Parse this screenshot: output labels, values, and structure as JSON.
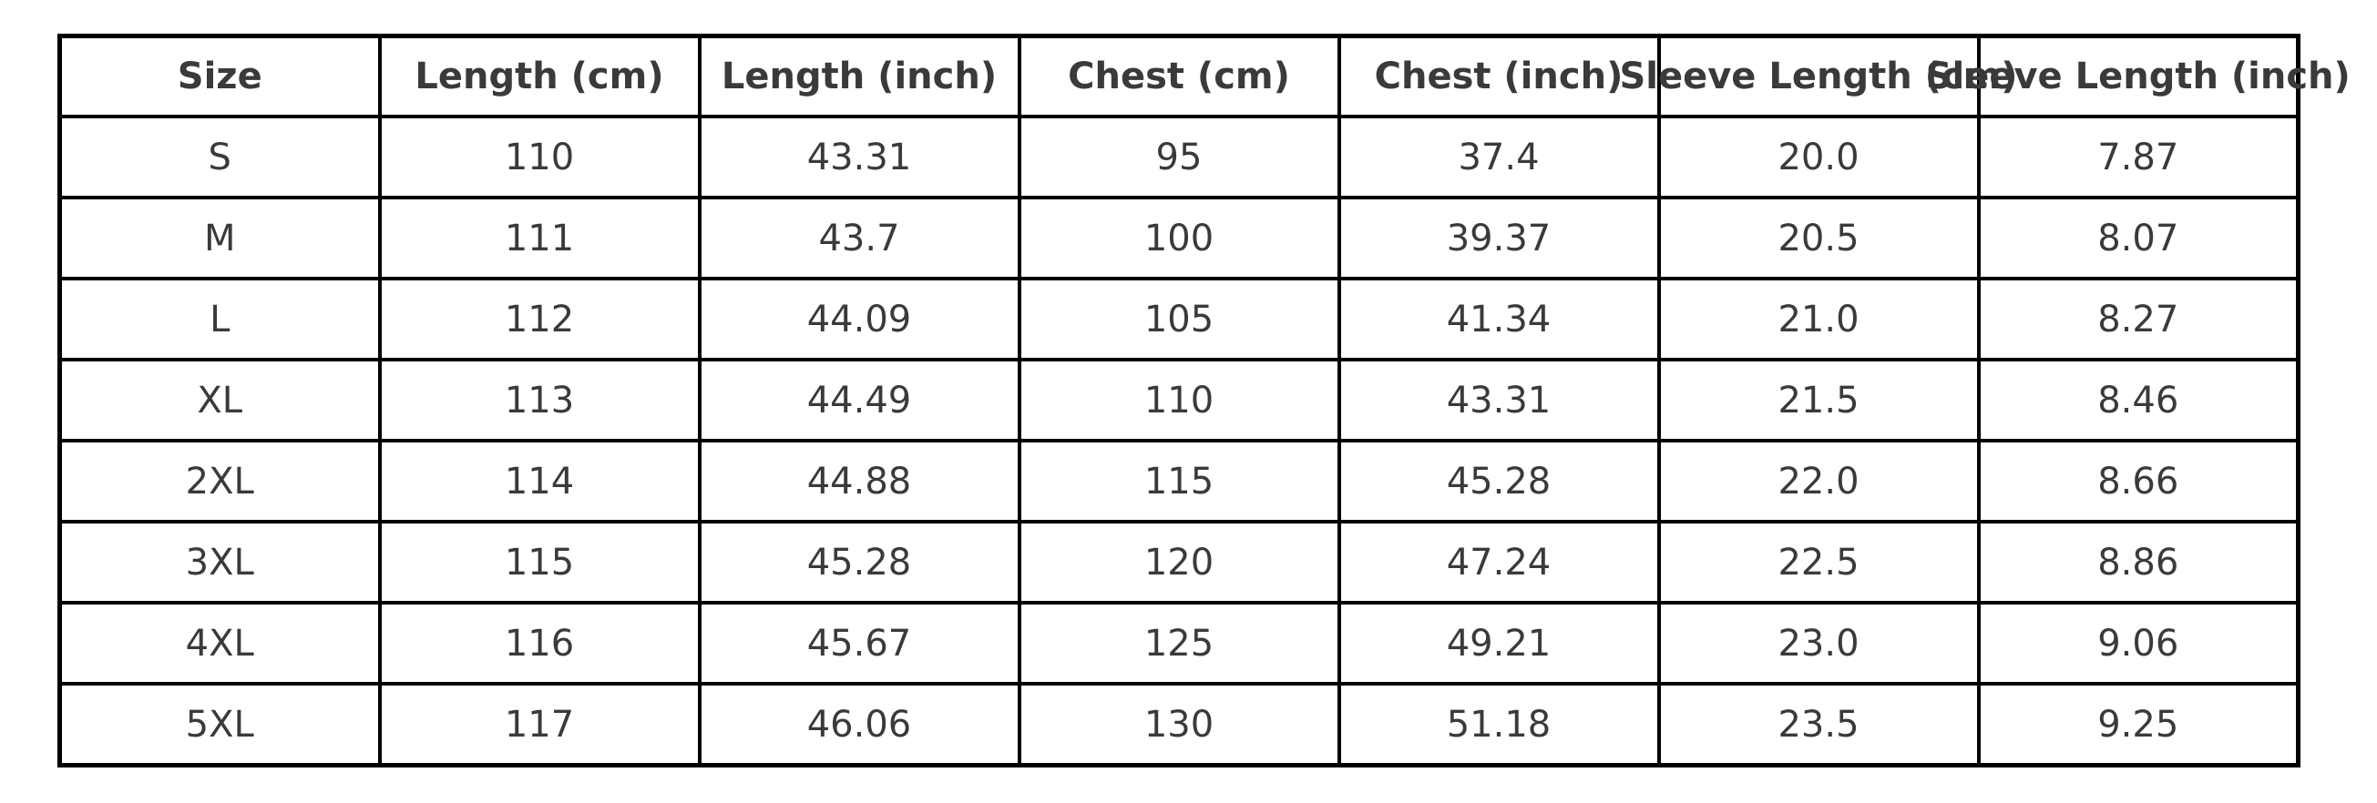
{
  "chart_data": {
    "type": "table",
    "title": "",
    "columns": [
      "Size",
      "Length (cm)",
      "Length (inch)",
      "Chest (cm)",
      "Chest (inch)",
      "Sleeve Length (cm)",
      "Sleeve Length (inch)"
    ],
    "rows": [
      [
        "S",
        "110",
        "43.31",
        "95",
        "37.4",
        "20.0",
        "7.87"
      ],
      [
        "M",
        "111",
        "43.7",
        "100",
        "39.37",
        "20.5",
        "8.07"
      ],
      [
        "L",
        "112",
        "44.09",
        "105",
        "41.34",
        "21.0",
        "8.27"
      ],
      [
        "XL",
        "113",
        "44.49",
        "110",
        "43.31",
        "21.5",
        "8.46"
      ],
      [
        "2XL",
        "114",
        "44.88",
        "115",
        "45.28",
        "22.0",
        "8.66"
      ],
      [
        "3XL",
        "115",
        "45.28",
        "120",
        "47.24",
        "22.5",
        "8.86"
      ],
      [
        "4XL",
        "116",
        "45.67",
        "125",
        "49.21",
        "23.0",
        "9.06"
      ],
      [
        "5XL",
        "117",
        "46.06",
        "130",
        "51.18",
        "23.5",
        "9.25"
      ]
    ]
  },
  "colors": {
    "background": "#ffffff",
    "border": "#000000",
    "text": "#3a3a3a"
  }
}
